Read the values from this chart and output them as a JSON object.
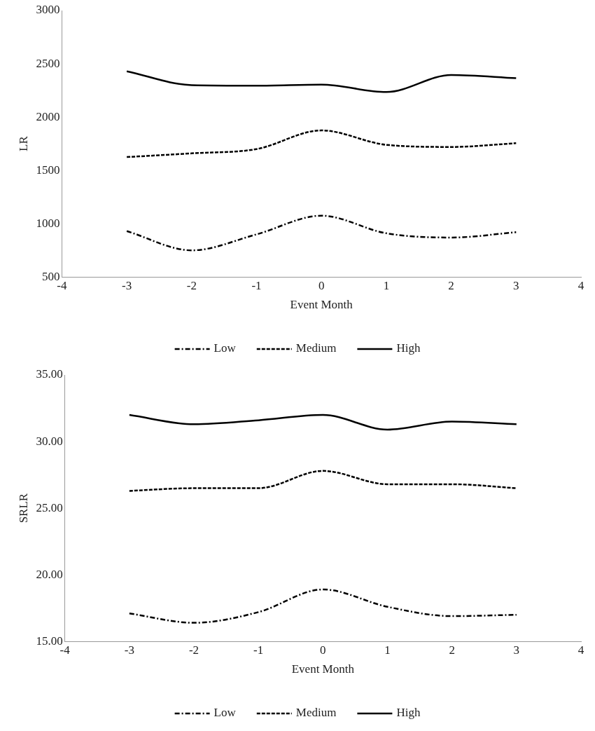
{
  "chart_data": [
    {
      "type": "line",
      "xlabel": "Event Month",
      "ylabel": "LR",
      "x": [
        -3,
        -2,
        -1,
        0,
        1,
        2,
        3
      ],
      "xlim": [
        -4,
        4
      ],
      "xticks": [
        -4,
        -3,
        -2,
        -1,
        0,
        1,
        2,
        3,
        4
      ],
      "ylim": [
        500,
        3000
      ],
      "yticks": [
        500,
        1000,
        1500,
        2000,
        2500,
        3000
      ],
      "grid": false,
      "legend": "bottom",
      "marker": "none",
      "series": [
        {
          "name": "Low",
          "color": "#000000",
          "line_style": "dashdot",
          "values": [
            930,
            750,
            900,
            1075,
            910,
            870,
            920
          ]
        },
        {
          "name": "Medium",
          "color": "#000000",
          "line_style": "dashed",
          "values": [
            1625,
            1660,
            1700,
            1875,
            1740,
            1720,
            1755
          ]
        },
        {
          "name": "High",
          "color": "#000000",
          "line_style": "solid",
          "values": [
            2430,
            2300,
            2295,
            2305,
            2235,
            2395,
            2365
          ]
        }
      ]
    },
    {
      "type": "line",
      "xlabel": "Event Month",
      "ylabel": "SRLR",
      "x": [
        -3,
        -2,
        -1,
        0,
        1,
        2,
        3
      ],
      "xlim": [
        -4,
        4
      ],
      "xticks": [
        -4,
        -3,
        -2,
        -1,
        0,
        1,
        2,
        3,
        4
      ],
      "ylim": [
        15,
        35
      ],
      "yticks": [
        {
          "value": 15,
          "label": "15.00"
        },
        {
          "value": 20,
          "label": "20.00"
        },
        {
          "value": 25,
          "label": "25.00"
        },
        {
          "value": 30,
          "label": "30.00"
        },
        {
          "value": 35,
          "label": "35.00"
        }
      ],
      "grid": false,
      "legend": "bottom",
      "marker": "none",
      "series": [
        {
          "name": "Low",
          "color": "#000000",
          "line_style": "dashdot",
          "values": [
            17.1,
            16.4,
            17.2,
            18.9,
            17.6,
            16.9,
            17.0
          ]
        },
        {
          "name": "Medium",
          "color": "#000000",
          "line_style": "dashed",
          "values": [
            26.3,
            26.5,
            26.5,
            27.8,
            26.8,
            26.8,
            26.5
          ]
        },
        {
          "name": "High",
          "color": "#000000",
          "line_style": "solid",
          "values": [
            32.0,
            31.3,
            31.6,
            32.0,
            30.9,
            31.5,
            31.3
          ]
        }
      ]
    }
  ]
}
